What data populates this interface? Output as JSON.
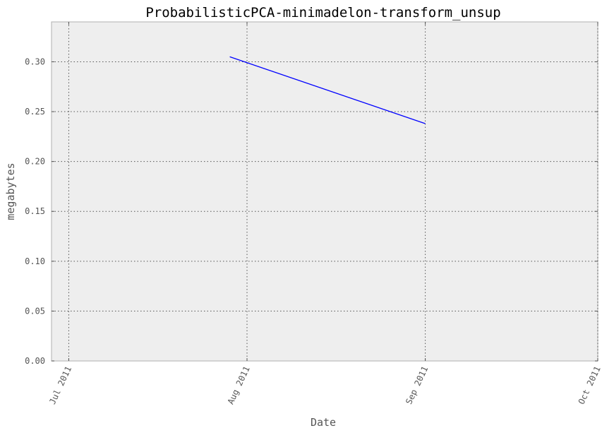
{
  "chart_data": {
    "type": "line",
    "title": "ProbabilisticPCA-minimadelon-transform_unsup",
    "xlabel": "Date",
    "ylabel": "megabytes",
    "x_axis_type": "date",
    "xlim": [
      "2011-06-28",
      "2011-10-01"
    ],
    "ylim": [
      0,
      0.34
    ],
    "x_ticks": [
      {
        "date": "2011-07-01",
        "label": "Jul 2011"
      },
      {
        "date": "2011-08-01",
        "label": "Aug 2011"
      },
      {
        "date": "2011-09-01",
        "label": "Sep 2011"
      },
      {
        "date": "2011-10-01",
        "label": "Oct 2011"
      }
    ],
    "y_ticks": [
      {
        "value": 0.0,
        "label": "0.00"
      },
      {
        "value": 0.05,
        "label": "0.05"
      },
      {
        "value": 0.1,
        "label": "0.10"
      },
      {
        "value": 0.15,
        "label": "0.15"
      },
      {
        "value": 0.2,
        "label": "0.20"
      },
      {
        "value": 0.25,
        "label": "0.25"
      },
      {
        "value": 0.3,
        "label": "0.30"
      }
    ],
    "grid": true,
    "series": [
      {
        "color": "#0000ff",
        "points": [
          {
            "x": "2011-07-29",
            "y": 0.305
          },
          {
            "x": "2011-09-01",
            "y": 0.238
          }
        ]
      }
    ]
  }
}
